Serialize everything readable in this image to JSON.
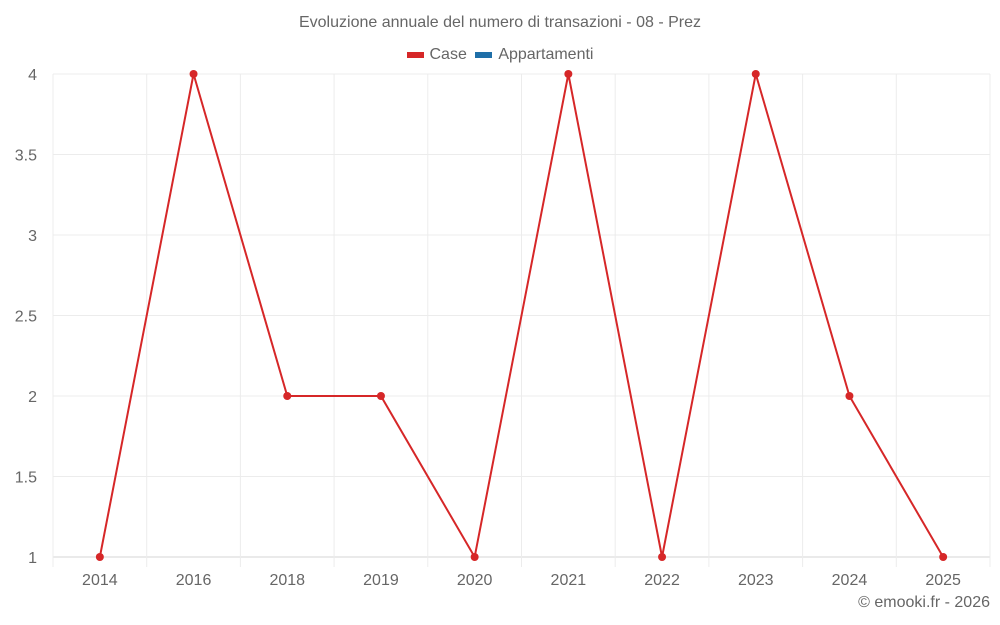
{
  "chart_data": {
    "type": "line",
    "title": "Evoluzione annuale del numero di transazioni - 08 - Prez",
    "categories": [
      "2014",
      "2016",
      "2018",
      "2019",
      "2020",
      "2021",
      "2022",
      "2023",
      "2024",
      "2025"
    ],
    "series": [
      {
        "name": "Case",
        "color": "#d62728",
        "values": [
          1,
          4,
          2,
          2,
          1,
          4,
          1,
          4,
          2,
          1
        ]
      },
      {
        "name": "Appartamenti",
        "color": "#1f6fa8",
        "values": []
      }
    ],
    "xlabel": "",
    "ylabel": "",
    "ylim": [
      1,
      4
    ],
    "yticks": [
      "1",
      "1.5",
      "2",
      "2.5",
      "3",
      "3.5",
      "4"
    ],
    "grid": true,
    "legend_position": "top"
  },
  "footer": "© emooki.fr - 2026"
}
